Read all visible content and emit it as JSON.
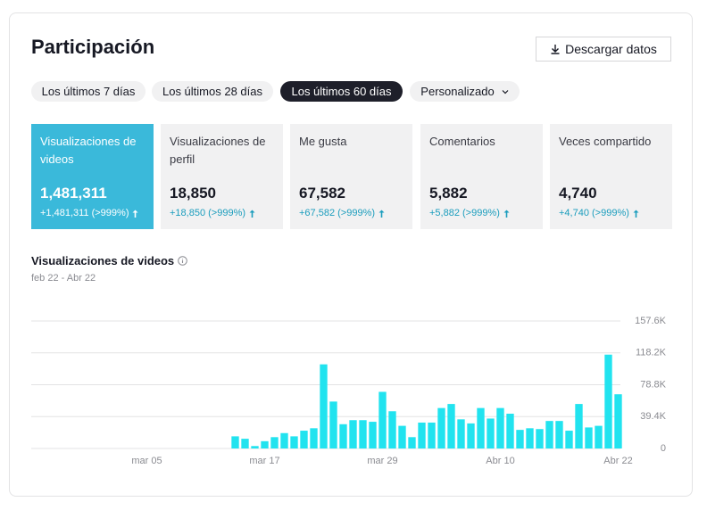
{
  "header": {
    "title": "Participación",
    "download_button": "Descargar datos"
  },
  "tabs": [
    "Los últimos 7 días",
    "Los últimos 28 días",
    "Los últimos 60 días",
    "Personalizado"
  ],
  "active_tab": 2,
  "cards": [
    {
      "label": "Visualizaciones de videos",
      "value": "1,481,311",
      "change": "+1,481,311 (>999%)"
    },
    {
      "label": "Visualizaciones de perfil",
      "value": "18,850",
      "change": "+18,850 (>999%)"
    },
    {
      "label": "Me gusta",
      "value": "67,582",
      "change": "+67,582 (>999%)"
    },
    {
      "label": "Comentarios",
      "value": "5,882",
      "change": "+5,882 (>999%)"
    },
    {
      "label": "Veces compartido",
      "value": "4,740",
      "change": "+4,740 (>999%)"
    }
  ],
  "active_card": 0,
  "chart_data": {
    "type": "bar",
    "title": "Visualizaciones de videos",
    "subtitle": "feb 22 - Abr 22",
    "categories": [
      null,
      null,
      null,
      null,
      null,
      null,
      null,
      null,
      null,
      null,
      null,
      "mar 05",
      null,
      null,
      null,
      null,
      null,
      null,
      null,
      null,
      null,
      null,
      null,
      "mar 17",
      null,
      null,
      null,
      null,
      null,
      null,
      null,
      null,
      null,
      null,
      null,
      "mar 29",
      null,
      null,
      null,
      null,
      null,
      null,
      null,
      null,
      null,
      null,
      null,
      "Abr 10",
      null,
      null,
      null,
      null,
      null,
      null,
      null,
      null,
      null,
      null,
      null,
      "Abr 22"
    ],
    "values": [
      0,
      0,
      0,
      0,
      0,
      0,
      0,
      0,
      0,
      0,
      0,
      0,
      0,
      0,
      0,
      0,
      0,
      0,
      0,
      0,
      15000,
      12000,
      3000,
      9000,
      14000,
      19000,
      15000,
      22000,
      25000,
      104000,
      58000,
      30000,
      35000,
      35000,
      33000,
      70000,
      46000,
      28000,
      14000,
      32000,
      32000,
      50000,
      55000,
      36000,
      31000,
      50000,
      37000,
      50000,
      43000,
      23000,
      25000,
      24000,
      34000,
      34000,
      22000,
      55000,
      26000,
      28000,
      116000,
      67000
    ],
    "color": "#21e3ef",
    "ylim": [
      0,
      157600
    ],
    "yticks": [
      0,
      {
        "value": 39400,
        "label": "39.4K"
      },
      {
        "value": 78800,
        "label": "78.8K"
      },
      {
        "value": 118200,
        "label": "118.2K"
      },
      {
        "value": 157600,
        "label": "157.6K"
      }
    ],
    "grid": true
  }
}
